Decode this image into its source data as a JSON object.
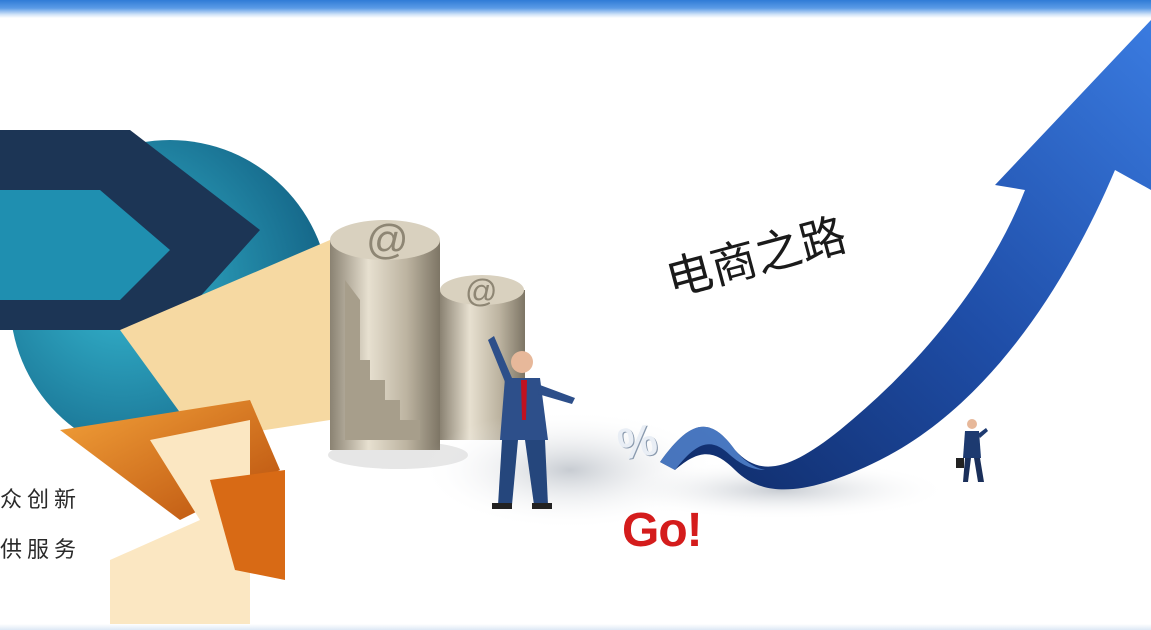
{
  "banner": {
    "slogan_line1": "众创新",
    "slogan_line2": "供服务",
    "title": "电商之路",
    "go_text": "Go!",
    "percent_symbol": "%"
  },
  "colors": {
    "top_bar": "#2f7bd6",
    "arrow_blue": "#1f4ea8",
    "go_red": "#d41c1c",
    "logo_teal": "#1f8fb0",
    "logo_navy": "#1c3555",
    "logo_orange": "#e07a1e",
    "logo_cream": "#f6d9a2"
  },
  "icons": [
    "logo-emblem",
    "at-symbol-cylinders",
    "businessman-figure",
    "growth-arrow",
    "walking-businessman-figure"
  ]
}
